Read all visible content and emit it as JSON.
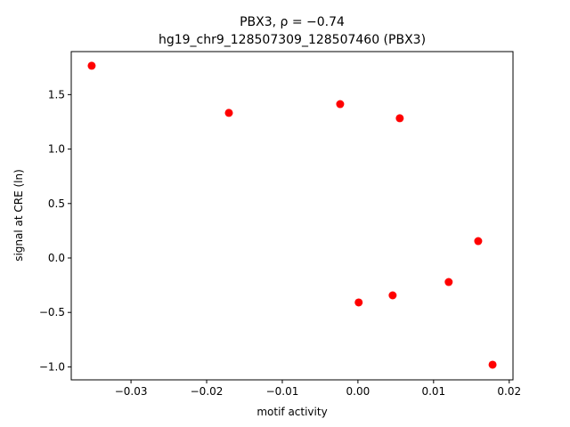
{
  "chart_data": {
    "type": "scatter",
    "title": "PBX3, ρ = −0.74",
    "subtitle": "hg19_chr9_128507309_128507460 (PBX3)",
    "x_label": "motif activity",
    "y_label": "signal at CRE (ln)",
    "color": "#ff0000",
    "x": [
      -0.0352,
      -0.01706,
      -0.00235,
      0.00553,
      0.0001,
      0.00459,
      0.012,
      0.0159,
      0.0178
    ],
    "values": [
      1.765,
      1.332,
      1.413,
      1.283,
      -0.408,
      -0.343,
      -0.221,
      0.155,
      -0.98
    ],
    "xlim": [
      -0.0379,
      0.0205
    ],
    "ylim": [
      -1.119,
      1.895
    ],
    "xticks": [
      {
        "value": -0.03,
        "label": "−0.03"
      },
      {
        "value": -0.02,
        "label": "−0.02"
      },
      {
        "value": -0.01,
        "label": "−0.01"
      },
      {
        "value": 0,
        "label": "0.00"
      },
      {
        "value": 0.01,
        "label": "0.01"
      },
      {
        "value": 0.02,
        "label": "0.02"
      }
    ],
    "yticks": [
      {
        "value": -1,
        "label": "−1.0"
      },
      {
        "value": -0.5,
        "label": "−0.5"
      },
      {
        "value": 0,
        "label": "0.0"
      },
      {
        "value": 0.5,
        "label": "0.5"
      },
      {
        "value": 1,
        "label": "1.0"
      },
      {
        "value": 1.5,
        "label": "1.5"
      }
    ]
  }
}
